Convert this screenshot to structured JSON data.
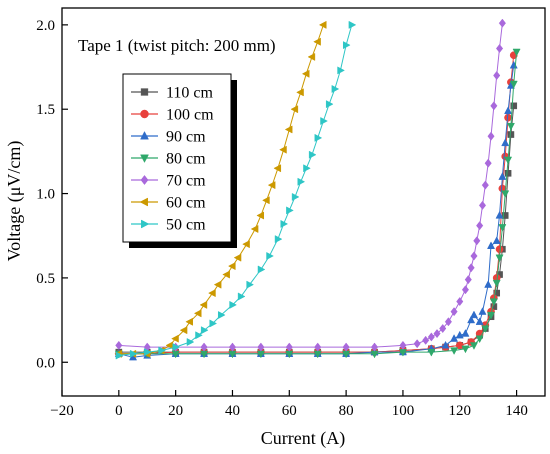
{
  "chart_data": {
    "type": "scatter",
    "annotation": "Tape 1 (twist pitch: 200 mm)",
    "xlabel": "Current (A)",
    "ylabel": "Voltage (μV/cm)",
    "xlim": [
      -20,
      150
    ],
    "ylim": [
      -0.2,
      2.1
    ],
    "xticks": [
      -20,
      0,
      20,
      40,
      60,
      80,
      100,
      120,
      140
    ],
    "xtick_labels": [
      "−20",
      "0",
      "20",
      "40",
      "60",
      "80",
      "100",
      "120",
      "140"
    ],
    "yticks": [
      0.0,
      0.5,
      1.0,
      1.5,
      2.0
    ],
    "ytick_labels": [
      "0.0",
      "0.5",
      "1.0",
      "1.5",
      "2.0"
    ],
    "legend_position": "upper-left",
    "series": [
      {
        "name": "110 cm",
        "marker": "square",
        "color": "#555555",
        "points": [
          [
            0,
            0.06
          ],
          [
            10,
            0.06
          ],
          [
            20,
            0.06
          ],
          [
            30,
            0.06
          ],
          [
            40,
            0.06
          ],
          [
            50,
            0.06
          ],
          [
            60,
            0.06
          ],
          [
            70,
            0.06
          ],
          [
            80,
            0.06
          ],
          [
            90,
            0.06
          ],
          [
            100,
            0.07
          ],
          [
            110,
            0.08
          ],
          [
            115,
            0.09
          ],
          [
            120,
            0.1
          ],
          [
            124,
            0.12
          ],
          [
            127,
            0.16
          ],
          [
            129,
            0.2
          ],
          [
            131,
            0.27
          ],
          [
            132,
            0.33
          ],
          [
            133,
            0.41
          ],
          [
            134,
            0.52
          ],
          [
            135,
            0.67
          ],
          [
            136,
            0.87
          ],
          [
            137,
            1.12
          ],
          [
            138,
            1.35
          ],
          [
            139,
            1.52
          ]
        ]
      },
      {
        "name": "100 cm",
        "marker": "circle",
        "color": "#e8413c",
        "points": [
          [
            0,
            0.05
          ],
          [
            10,
            0.05
          ],
          [
            20,
            0.06
          ],
          [
            30,
            0.06
          ],
          [
            40,
            0.06
          ],
          [
            50,
            0.06
          ],
          [
            60,
            0.06
          ],
          [
            70,
            0.06
          ],
          [
            80,
            0.06
          ],
          [
            90,
            0.06
          ],
          [
            100,
            0.07
          ],
          [
            110,
            0.08
          ],
          [
            115,
            0.09
          ],
          [
            120,
            0.1
          ],
          [
            124,
            0.12
          ],
          [
            127,
            0.17
          ],
          [
            129,
            0.22
          ],
          [
            131,
            0.3
          ],
          [
            132,
            0.38
          ],
          [
            133,
            0.5
          ],
          [
            134,
            0.67
          ],
          [
            135,
            1.03
          ],
          [
            136,
            1.22
          ],
          [
            137,
            1.45
          ],
          [
            138,
            1.66
          ],
          [
            139,
            1.82
          ]
        ]
      },
      {
        "name": "90 cm",
        "marker": "triangle-up",
        "color": "#2f6cc9",
        "points": [
          [
            0,
            0.05
          ],
          [
            5,
            0.03
          ],
          [
            10,
            0.04
          ],
          [
            20,
            0.05
          ],
          [
            30,
            0.05
          ],
          [
            40,
            0.05
          ],
          [
            50,
            0.05
          ],
          [
            60,
            0.05
          ],
          [
            70,
            0.05
          ],
          [
            80,
            0.05
          ],
          [
            90,
            0.06
          ],
          [
            100,
            0.06
          ],
          [
            110,
            0.08
          ],
          [
            115,
            0.1
          ],
          [
            118,
            0.14
          ],
          [
            120,
            0.16
          ],
          [
            122,
            0.17
          ],
          [
            124,
            0.25
          ],
          [
            125,
            0.28
          ],
          [
            127,
            0.24
          ],
          [
            128,
            0.3
          ],
          [
            130,
            0.46
          ],
          [
            131,
            0.69
          ],
          [
            133,
            0.72
          ],
          [
            134,
            0.87
          ],
          [
            135,
            1.1
          ],
          [
            136,
            1.3
          ],
          [
            137,
            1.49
          ],
          [
            138,
            1.64
          ],
          [
            139,
            1.76
          ]
        ]
      },
      {
        "name": "80 cm",
        "marker": "triangle-down",
        "color": "#2fa86a",
        "points": [
          [
            0,
            0.05
          ],
          [
            10,
            0.05
          ],
          [
            20,
            0.05
          ],
          [
            30,
            0.05
          ],
          [
            40,
            0.05
          ],
          [
            50,
            0.05
          ],
          [
            60,
            0.05
          ],
          [
            70,
            0.05
          ],
          [
            80,
            0.05
          ],
          [
            90,
            0.05
          ],
          [
            100,
            0.06
          ],
          [
            110,
            0.06
          ],
          [
            118,
            0.07
          ],
          [
            122,
            0.08
          ],
          [
            125,
            0.1
          ],
          [
            127,
            0.14
          ],
          [
            129,
            0.2
          ],
          [
            131,
            0.28
          ],
          [
            132,
            0.36
          ],
          [
            133,
            0.47
          ],
          [
            134,
            0.62
          ],
          [
            135,
            0.8
          ],
          [
            136,
            1.0
          ],
          [
            137,
            1.2
          ],
          [
            138,
            1.4
          ],
          [
            139,
            1.65
          ],
          [
            140,
            1.84
          ]
        ]
      },
      {
        "name": "70 cm",
        "marker": "diamond",
        "color": "#a969dc",
        "points": [
          [
            0,
            0.1
          ],
          [
            10,
            0.09
          ],
          [
            20,
            0.09
          ],
          [
            30,
            0.09
          ],
          [
            40,
            0.09
          ],
          [
            50,
            0.09
          ],
          [
            60,
            0.09
          ],
          [
            70,
            0.09
          ],
          [
            80,
            0.09
          ],
          [
            90,
            0.09
          ],
          [
            100,
            0.1
          ],
          [
            105,
            0.11
          ],
          [
            108,
            0.13
          ],
          [
            110,
            0.15
          ],
          [
            112,
            0.17
          ],
          [
            114,
            0.2
          ],
          [
            116,
            0.24
          ],
          [
            118,
            0.3
          ],
          [
            120,
            0.36
          ],
          [
            122,
            0.43
          ],
          [
            123,
            0.49
          ],
          [
            124,
            0.56
          ],
          [
            125,
            0.63
          ],
          [
            126,
            0.72
          ],
          [
            127,
            0.81
          ],
          [
            128,
            0.93
          ],
          [
            129,
            1.05
          ],
          [
            130,
            1.18
          ],
          [
            131,
            1.34
          ],
          [
            132,
            1.52
          ],
          [
            133,
            1.7
          ],
          [
            134,
            1.86
          ],
          [
            135,
            2.01
          ]
        ]
      },
      {
        "name": "60 cm",
        "marker": "triangle-left",
        "color": "#cc9900",
        "points": [
          [
            0,
            0.05
          ],
          [
            5,
            0.05
          ],
          [
            10,
            0.05
          ],
          [
            15,
            0.07
          ],
          [
            18,
            0.1
          ],
          [
            20,
            0.14
          ],
          [
            23,
            0.19
          ],
          [
            25,
            0.24
          ],
          [
            28,
            0.29
          ],
          [
            30,
            0.34
          ],
          [
            33,
            0.41
          ],
          [
            35,
            0.46
          ],
          [
            38,
            0.52
          ],
          [
            40,
            0.57
          ],
          [
            42,
            0.62
          ],
          [
            45,
            0.7
          ],
          [
            48,
            0.79
          ],
          [
            50,
            0.87
          ],
          [
            52,
            0.96
          ],
          [
            54,
            1.05
          ],
          [
            56,
            1.15
          ],
          [
            58,
            1.26
          ],
          [
            60,
            1.38
          ],
          [
            62,
            1.5
          ],
          [
            64,
            1.6
          ],
          [
            66,
            1.71
          ],
          [
            68,
            1.81
          ],
          [
            70,
            1.9
          ],
          [
            72,
            2.0
          ]
        ]
      },
      {
        "name": "50 cm",
        "marker": "triangle-right",
        "color": "#2ec6c6",
        "points": [
          [
            0,
            0.04
          ],
          [
            5,
            0.05
          ],
          [
            10,
            0.06
          ],
          [
            15,
            0.07
          ],
          [
            20,
            0.09
          ],
          [
            25,
            0.12
          ],
          [
            28,
            0.16
          ],
          [
            30,
            0.19
          ],
          [
            33,
            0.23
          ],
          [
            36,
            0.28
          ],
          [
            40,
            0.34
          ],
          [
            43,
            0.39
          ],
          [
            46,
            0.46
          ],
          [
            50,
            0.55
          ],
          [
            53,
            0.63
          ],
          [
            56,
            0.73
          ],
          [
            58,
            0.82
          ],
          [
            60,
            0.9
          ],
          [
            62,
            0.98
          ],
          [
            64,
            1.07
          ],
          [
            66,
            1.15
          ],
          [
            68,
            1.23
          ],
          [
            70,
            1.33
          ],
          [
            72,
            1.43
          ],
          [
            74,
            1.53
          ],
          [
            76,
            1.62
          ],
          [
            78,
            1.73
          ],
          [
            80,
            1.88
          ],
          [
            82,
            2.0
          ]
        ]
      }
    ]
  }
}
